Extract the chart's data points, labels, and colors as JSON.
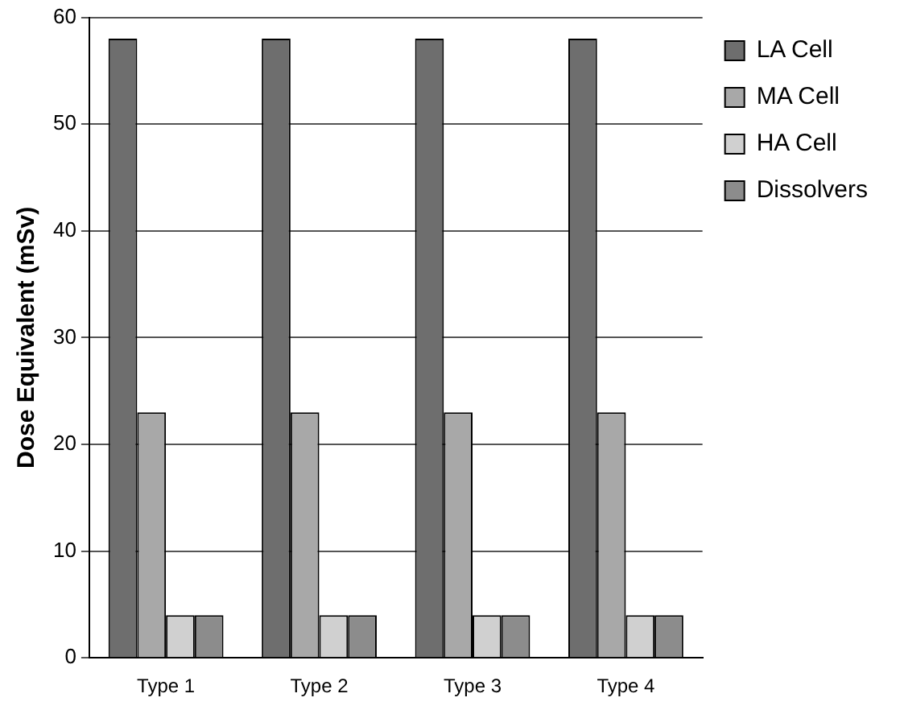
{
  "chart_data": {
    "type": "bar",
    "ylabel": "Dose Equivalent (mSv)",
    "categories": [
      "Type 1",
      "Type 2",
      "Type 3",
      "Type 4"
    ],
    "series": [
      {
        "name": "LA Cell",
        "color": "#6e6e6e",
        "values": [
          58,
          58,
          58,
          58
        ]
      },
      {
        "name": "MA Cell",
        "color": "#a8a8a8",
        "values": [
          23,
          23,
          23,
          23
        ]
      },
      {
        "name": "HA Cell",
        "color": "#d0d0d0",
        "values": [
          4,
          4,
          4,
          4
        ]
      },
      {
        "name": "Dissolvers",
        "color": "#8c8c8c",
        "values": [
          4,
          4,
          4,
          4
        ]
      }
    ],
    "ylim": [
      0,
      60
    ],
    "yticks": [
      0,
      10,
      20,
      30,
      40,
      50,
      60
    ],
    "grid": "y",
    "legend": "top right"
  }
}
